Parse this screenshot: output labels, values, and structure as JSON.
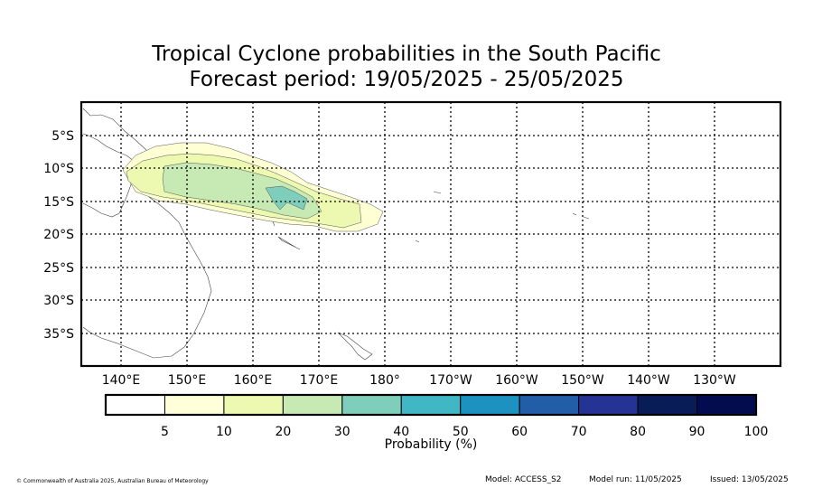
{
  "title_line1": "Tropical Cyclone probabilities in the South Pacific",
  "title_line2": "Forecast period: 19/05/2025 - 25/05/2025",
  "map": {
    "lat_labels": [
      "5°S",
      "10°S",
      "15°S",
      "20°S",
      "25°S",
      "30°S",
      "35°S"
    ],
    "lon_labels": [
      "140°E",
      "150°E",
      "160°E",
      "170°E",
      "180°",
      "170°W",
      "160°W",
      "150°W",
      "140°W",
      "130°W"
    ],
    "probability_contours": [
      {
        "level": "5-10%",
        "color": "#ffffd4"
      },
      {
        "level": "10-20%",
        "color": "#edf8b1"
      },
      {
        "level": "20-30%",
        "color": "#c7e9b4"
      },
      {
        "level": "30-40%",
        "color": "#7fcdbb"
      }
    ]
  },
  "colorbar": {
    "colors": [
      "#ffffff",
      "#ffffd9",
      "#edf8b1",
      "#c7e9b4",
      "#7fcdbb",
      "#41b6c4",
      "#1d91c0",
      "#225ea8",
      "#253494",
      "#081d58",
      "#020c4f"
    ],
    "tick_labels": [
      "5",
      "10",
      "20",
      "30",
      "40",
      "50",
      "60",
      "70",
      "80",
      "90",
      "100"
    ],
    "label": "Probability (%)"
  },
  "footer": {
    "credit": "© Commonwealth of Australia 2025, Australian Bureau of Meteorology",
    "model": "Model: ACCESS_S2",
    "model_run": "Model run: 11/05/2025",
    "issued": "Issued: 13/05/2025"
  }
}
